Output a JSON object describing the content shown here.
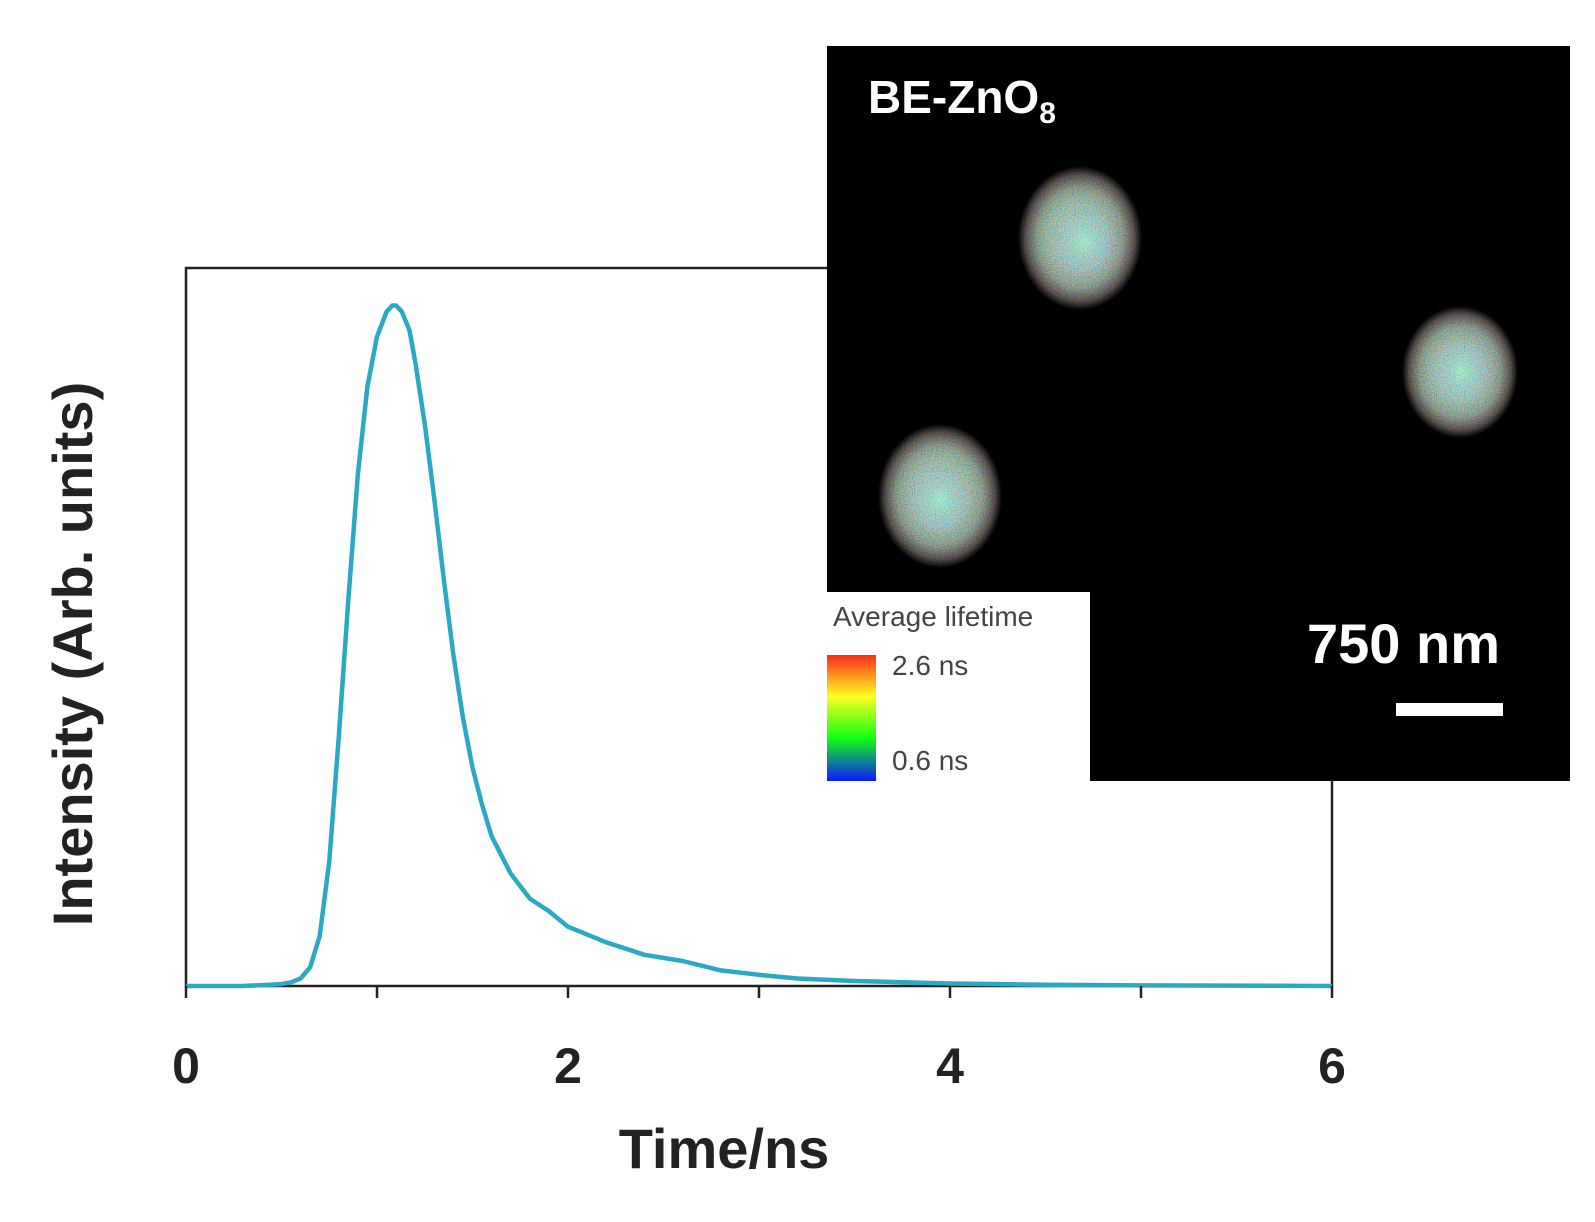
{
  "chart_data": {
    "type": "line",
    "title": "",
    "xlabel": "Time/ns",
    "ylabel": "Intensity (Arb. units)",
    "xlim": [
      0,
      6
    ],
    "ylim": [
      0,
      1.15
    ],
    "xticks": [
      "0",
      "2",
      "4",
      "6"
    ],
    "grid": false,
    "series": [
      {
        "color": "#2aa9c4",
        "x": [
          0,
          0.3,
          0.5,
          0.55,
          0.6,
          0.65,
          0.7,
          0.75,
          0.8,
          0.85,
          0.9,
          0.95,
          1.0,
          1.05,
          1.08,
          1.1,
          1.13,
          1.17,
          1.2,
          1.25,
          1.3,
          1.35,
          1.4,
          1.45,
          1.5,
          1.55,
          1.6,
          1.7,
          1.8,
          1.9,
          2.0,
          2.2,
          2.4,
          2.6,
          2.8,
          3.0,
          3.2,
          3.5,
          4.0,
          4.5,
          5.0,
          6.0
        ],
        "y": [
          0,
          0,
          0.003,
          0.006,
          0.012,
          0.03,
          0.08,
          0.2,
          0.4,
          0.62,
          0.82,
          0.96,
          1.04,
          1.08,
          1.09,
          1.09,
          1.08,
          1.05,
          1.0,
          0.9,
          0.78,
          0.65,
          0.53,
          0.43,
          0.35,
          0.29,
          0.24,
          0.18,
          0.14,
          0.12,
          0.095,
          0.07,
          0.05,
          0.04,
          0.025,
          0.018,
          0.012,
          0.008,
          0.004,
          0.002,
          0.001,
          0
        ]
      }
    ]
  },
  "inset": {
    "title_main": "BE-ZnO",
    "title_sub": "8",
    "scale_bar_label": "750 nm",
    "legend_title": "Average lifetime",
    "legend_max": "2.6 ns",
    "legend_min": "0.6 ns",
    "colormap": [
      "#ff2a1a",
      "#ffff1e",
      "#12ff12",
      "#0a1aff"
    ],
    "background": "#000000"
  }
}
